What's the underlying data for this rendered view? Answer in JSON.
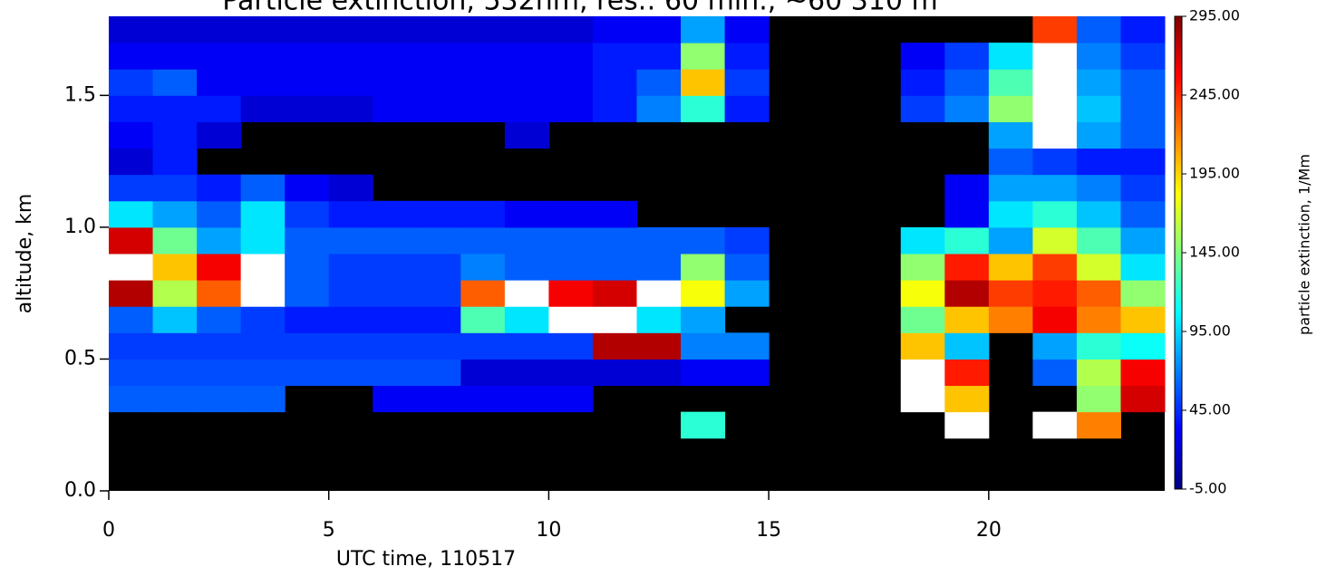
{
  "chart_data": {
    "type": "heatmap",
    "title": "Particle extinction, 532nm, res.: 60 min., ~60 310 m",
    "xlabel": "UTC time, 110517",
    "ylabel": "altitude, km",
    "colorbar_label": "particle extinction, 1/Mm",
    "xbins": [
      0,
      1,
      2,
      3,
      4,
      5,
      6,
      7,
      8,
      9,
      10,
      11,
      12,
      13,
      14,
      15,
      16,
      17,
      18,
      19,
      20,
      21,
      22,
      23,
      24
    ],
    "ybins": [
      0,
      0.1,
      0.2,
      0.3,
      0.4,
      0.5,
      0.6,
      0.7,
      0.8,
      0.9,
      1.0,
      1.1,
      1.2,
      1.3,
      1.4,
      1.5,
      1.6,
      1.7,
      1.8
    ],
    "z": [
      [
        null,
        null,
        null,
        null,
        null,
        null,
        null,
        null,
        null,
        null,
        null,
        null,
        null,
        null,
        null,
        null,
        null,
        null,
        null,
        null,
        null,
        null,
        null,
        null
      ],
      [
        null,
        null,
        null,
        null,
        null,
        null,
        null,
        null,
        null,
        null,
        null,
        null,
        null,
        null,
        null,
        null,
        null,
        null,
        null,
        null,
        null,
        null,
        null,
        null
      ],
      [
        null,
        null,
        null,
        null,
        null,
        null,
        null,
        null,
        null,
        null,
        null,
        null,
        null,
        120,
        null,
        null,
        null,
        null,
        null,
        300,
        null,
        320,
        220,
        null
      ],
      [
        60,
        60,
        60,
        60,
        null,
        null,
        30,
        30,
        30,
        30,
        30,
        null,
        null,
        null,
        null,
        null,
        null,
        null,
        320,
        200,
        null,
        null,
        150,
        270
      ],
      [
        55,
        55,
        55,
        55,
        55,
        55,
        55,
        55,
        20,
        20,
        20,
        20,
        20,
        30,
        30,
        null,
        null,
        null,
        320,
        250,
        null,
        60,
        160,
        260
      ],
      [
        50,
        50,
        50,
        50,
        50,
        50,
        50,
        50,
        50,
        50,
        50,
        280,
        280,
        70,
        70,
        null,
        null,
        null,
        200,
        90,
        null,
        80,
        120,
        110
      ],
      [
        60,
        90,
        60,
        50,
        40,
        40,
        40,
        40,
        130,
        100,
        320,
        320,
        100,
        80,
        null,
        null,
        null,
        null,
        140,
        200,
        220,
        260,
        220,
        200
      ],
      [
        280,
        160,
        230,
        320,
        60,
        50,
        50,
        50,
        230,
        320,
        260,
        270,
        320,
        180,
        80,
        null,
        null,
        null,
        180,
        280,
        240,
        250,
        230,
        150
      ],
      [
        320,
        200,
        260,
        320,
        60,
        50,
        50,
        50,
        70,
        60,
        60,
        60,
        60,
        150,
        60,
        null,
        null,
        null,
        150,
        250,
        200,
        240,
        170,
        100
      ],
      [
        270,
        140,
        80,
        100,
        60,
        60,
        60,
        60,
        60,
        60,
        60,
        60,
        60,
        60,
        50,
        null,
        null,
        null,
        100,
        120,
        80,
        170,
        130,
        80
      ],
      [
        100,
        80,
        60,
        100,
        50,
        40,
        40,
        40,
        40,
        30,
        30,
        30,
        null,
        null,
        null,
        null,
        null,
        null,
        null,
        30,
        100,
        120,
        90,
        60
      ],
      [
        50,
        50,
        40,
        60,
        30,
        20,
        null,
        null,
        null,
        null,
        null,
        null,
        null,
        null,
        null,
        null,
        null,
        null,
        null,
        30,
        80,
        80,
        70,
        50
      ],
      [
        20,
        40,
        null,
        null,
        null,
        null,
        null,
        null,
        null,
        null,
        null,
        null,
        null,
        null,
        null,
        null,
        null,
        null,
        null,
        null,
        60,
        50,
        40,
        40
      ],
      [
        30,
        40,
        20,
        null,
        null,
        null,
        null,
        null,
        null,
        20,
        null,
        null,
        null,
        null,
        null,
        null,
        null,
        null,
        null,
        null,
        80,
        320,
        80,
        60
      ],
      [
        40,
        40,
        40,
        20,
        20,
        20,
        30,
        30,
        30,
        30,
        30,
        40,
        70,
        120,
        40,
        null,
        null,
        null,
        50,
        70,
        150,
        320,
        90,
        60
      ],
      [
        50,
        60,
        30,
        30,
        30,
        30,
        30,
        30,
        30,
        30,
        30,
        40,
        60,
        200,
        50,
        null,
        null,
        null,
        40,
        60,
        130,
        320,
        80,
        60
      ],
      [
        30,
        30,
        30,
        30,
        30,
        30,
        30,
        30,
        30,
        30,
        30,
        40,
        40,
        150,
        40,
        null,
        null,
        null,
        30,
        50,
        100,
        320,
        70,
        50
      ],
      [
        20,
        20,
        20,
        20,
        20,
        20,
        20,
        20,
        20,
        20,
        20,
        30,
        30,
        80,
        30,
        null,
        null,
        null,
        null,
        null,
        null,
        240,
        60,
        40
      ]
    ],
    "xlim": [
      0,
      24
    ],
    "xticks": [
      0,
      5,
      10,
      15,
      20
    ],
    "ylim": [
      0,
      1.8
    ],
    "yticks": [
      {
        "value": 0,
        "label": "0.0"
      },
      0.5,
      {
        "value": 1,
        "label": "1.0"
      },
      1.5
    ],
    "zlim": [
      -5,
      295
    ],
    "zticks": [
      {
        "value": -5,
        "label": "-5.00"
      },
      {
        "value": 45,
        "label": "45.00"
      },
      {
        "value": 95,
        "label": "95.00"
      },
      {
        "value": 145,
        "label": "145.00"
      },
      {
        "value": 195,
        "label": "195.00"
      },
      {
        "value": 245,
        "label": "245.00"
      },
      {
        "value": 295,
        "label": "295.00"
      }
    ],
    "colormap": [
      "#00007f",
      "#0000ff",
      "#0080ff",
      "#00ffff",
      "#80ff80",
      "#ffff00",
      "#ff8000",
      "#ff0000",
      "#7f0000"
    ],
    "missing_color": "#000000",
    "over_color": "#ffffff"
  }
}
